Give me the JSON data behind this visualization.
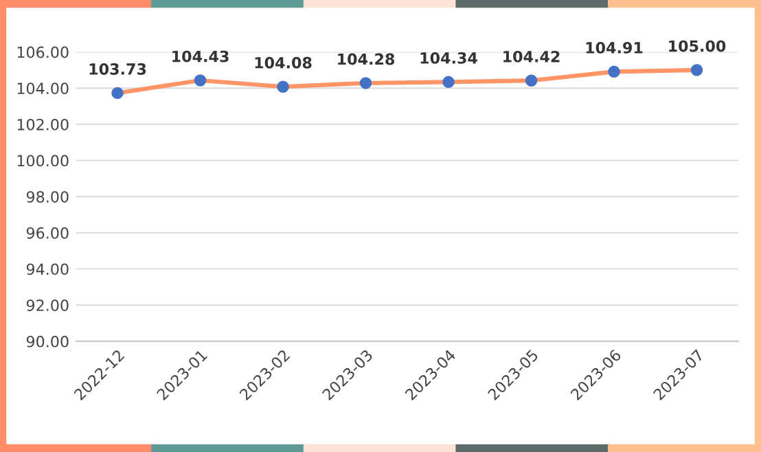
{
  "chart_data": {
    "type": "line",
    "categories": [
      "2022-12",
      "2023-01",
      "2023-02",
      "2023-03",
      "2023-04",
      "2023-05",
      "2023-06",
      "2023-07"
    ],
    "series": [
      {
        "color": "#ff9466",
        "colors": [
          "#4472c4",
          "#4472c4",
          "#4472c4",
          "#4472c4",
          "#4472c4",
          "#4472c4",
          "#4472c4",
          "#4472c4"
        ],
        "values": [
          103.73,
          104.43,
          104.08,
          104.28,
          104.34,
          104.42,
          104.91,
          105.0
        ],
        "value_labels": [
          "103.73",
          "104.43",
          "104.08",
          "104.28",
          "104.34",
          "104.42",
          "104.91",
          "105.00"
        ]
      }
    ],
    "ylim": [
      90,
      106
    ],
    "yticks": [
      {
        "value": 90,
        "label": "90.00"
      },
      {
        "value": 92,
        "label": "92.00"
      },
      {
        "value": 94,
        "label": "94.00"
      },
      {
        "value": 96,
        "label": "96.00"
      },
      {
        "value": 98,
        "label": "98.00"
      },
      {
        "value": 100,
        "label": "100.00"
      },
      {
        "value": 102,
        "label": "102.00"
      },
      {
        "value": 104,
        "label": "104.00"
      },
      {
        "value": 106,
        "label": "106.00"
      }
    ],
    "grid": "y",
    "marker": "circle",
    "line_style": "solid",
    "legend": false
  }
}
